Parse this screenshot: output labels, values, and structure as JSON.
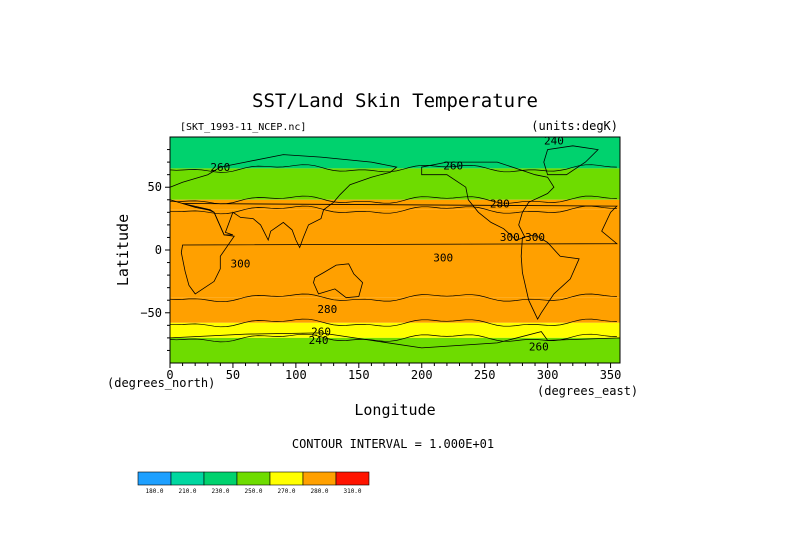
{
  "chart_data": {
    "type": "heatmap",
    "title": "SST/Land Skin Temperature",
    "dataset_label": "[SKT_1993-11_NCEP.nc]",
    "units_label": "(units:degK)",
    "xlabel": "Longitude",
    "ylabel": "Latitude",
    "x_units": "(degrees_east)",
    "y_units": "(degrees_north)",
    "xlim": [
      0,
      357.5
    ],
    "ylim": [
      -90,
      90
    ],
    "x_ticks": [
      "0",
      "50",
      "100",
      "150",
      "200",
      "250",
      "300",
      "350"
    ],
    "y_ticks": [
      "50",
      "0",
      "−50"
    ],
    "contour_interval": "CONTOUR INTERVAL = 1.000E+01",
    "contour_labels": [
      {
        "text": "260",
        "lon": 40,
        "lat": 63
      },
      {
        "text": "260",
        "lon": 225,
        "lat": 64
      },
      {
        "text": "240",
        "lon": 305,
        "lat": 84
      },
      {
        "text": "280",
        "lon": 262,
        "lat": 34
      },
      {
        "text": "300",
        "lon": 270,
        "lat": 7
      },
      {
        "text": "300",
        "lon": 290,
        "lat": 7
      },
      {
        "text": "300",
        "lon": 56,
        "lat": -14
      },
      {
        "text": "300",
        "lon": 217,
        "lat": -9
      },
      {
        "text": "280",
        "lon": 125,
        "lat": -50
      },
      {
        "text": "260",
        "lon": 120,
        "lat": -68
      },
      {
        "text": "240",
        "lon": 118,
        "lat": -75
      },
      {
        "text": "260",
        "lon": 293,
        "lat": -80
      }
    ],
    "colorbar": {
      "colors": [
        "#1ea0ff",
        "#00d7a0",
        "#00d26e",
        "#6edc00",
        "#ffff00",
        "#ffa000",
        "#ff1400"
      ],
      "labels": [
        "180.0",
        "210.0",
        "230.0",
        "250.0",
        "270.0",
        "280.0",
        "310.0"
      ]
    },
    "bands": [
      {
        "lat_top": 90,
        "lat_bottom": 65,
        "value": 245
      },
      {
        "lat_top": 65,
        "lat_bottom": 40,
        "value": 265
      },
      {
        "lat_top": 40,
        "lat_bottom": 32,
        "value": 285
      },
      {
        "lat_top": 32,
        "lat_bottom": -38,
        "value": 300
      },
      {
        "lat_top": -38,
        "lat_bottom": -58,
        "value": 285
      },
      {
        "lat_top": -58,
        "lat_bottom": -70,
        "value": 272
      },
      {
        "lat_top": -70,
        "lat_bottom": -90,
        "value": 250
      }
    ]
  }
}
